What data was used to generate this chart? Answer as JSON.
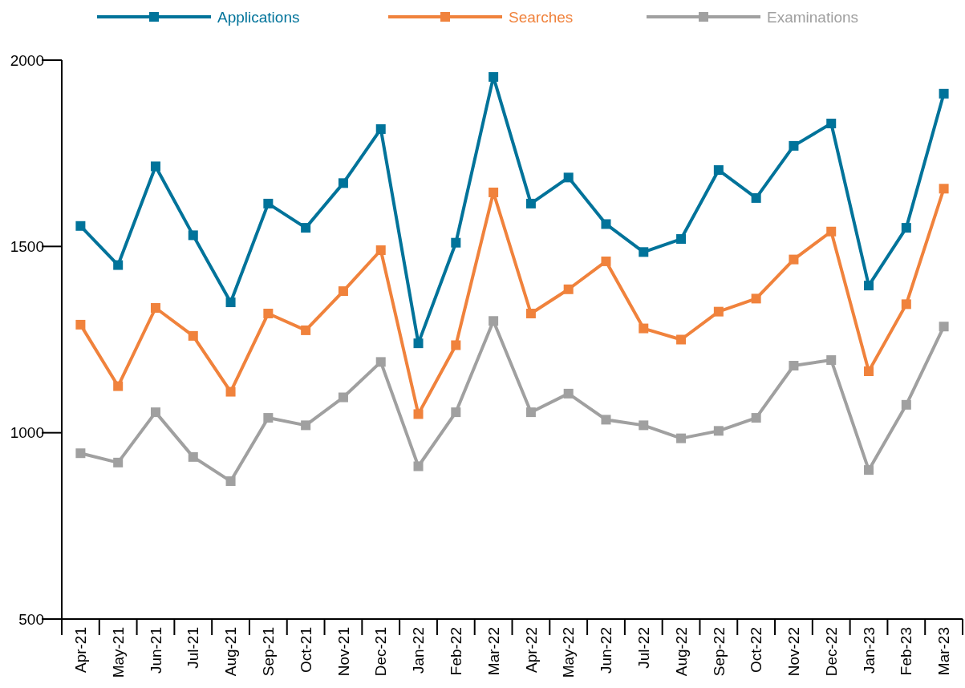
{
  "chart_data": {
    "type": "line",
    "categories": [
      "Apr-21",
      "May-21",
      "Jun-21",
      "Jul-21",
      "Aug-21",
      "Sep-21",
      "Oct-21",
      "Nov-21",
      "Dec-21",
      "Jan-22",
      "Feb-22",
      "Mar-22",
      "Apr-22",
      "May-22",
      "Jun-22",
      "Jul-22",
      "Aug-22",
      "Sep-22",
      "Oct-22",
      "Nov-22",
      "Dec-22",
      "Jan-23",
      "Feb-23",
      "Mar-23"
    ],
    "series": [
      {
        "name": "Applications",
        "color": "#00739a",
        "values": [
          1555,
          1450,
          1715,
          1530,
          1350,
          1615,
          1550,
          1670,
          1815,
          1240,
          1510,
          1955,
          1615,
          1685,
          1560,
          1485,
          1520,
          1705,
          1630,
          1770,
          1830,
          1395,
          1550,
          1910
        ]
      },
      {
        "name": "Searches",
        "color": "#f0823c",
        "values": [
          1290,
          1125,
          1335,
          1260,
          1110,
          1320,
          1275,
          1380,
          1490,
          1050,
          1235,
          1645,
          1320,
          1385,
          1460,
          1280,
          1250,
          1325,
          1360,
          1465,
          1540,
          1165,
          1345,
          1655
        ]
      },
      {
        "name": "Examinations",
        "color": "#a0a0a0",
        "values": [
          945,
          920,
          1055,
          935,
          870,
          1040,
          1020,
          1095,
          1190,
          910,
          1055,
          1300,
          1055,
          1105,
          1035,
          1020,
          985,
          1005,
          1040,
          1180,
          1195,
          900,
          1075,
          1285
        ]
      }
    ],
    "ylim": [
      500,
      2000
    ],
    "yticks": [
      500,
      1000,
      1500,
      2000
    ],
    "grid": false,
    "legend": "top",
    "marker": "square",
    "line_style": "solid"
  }
}
